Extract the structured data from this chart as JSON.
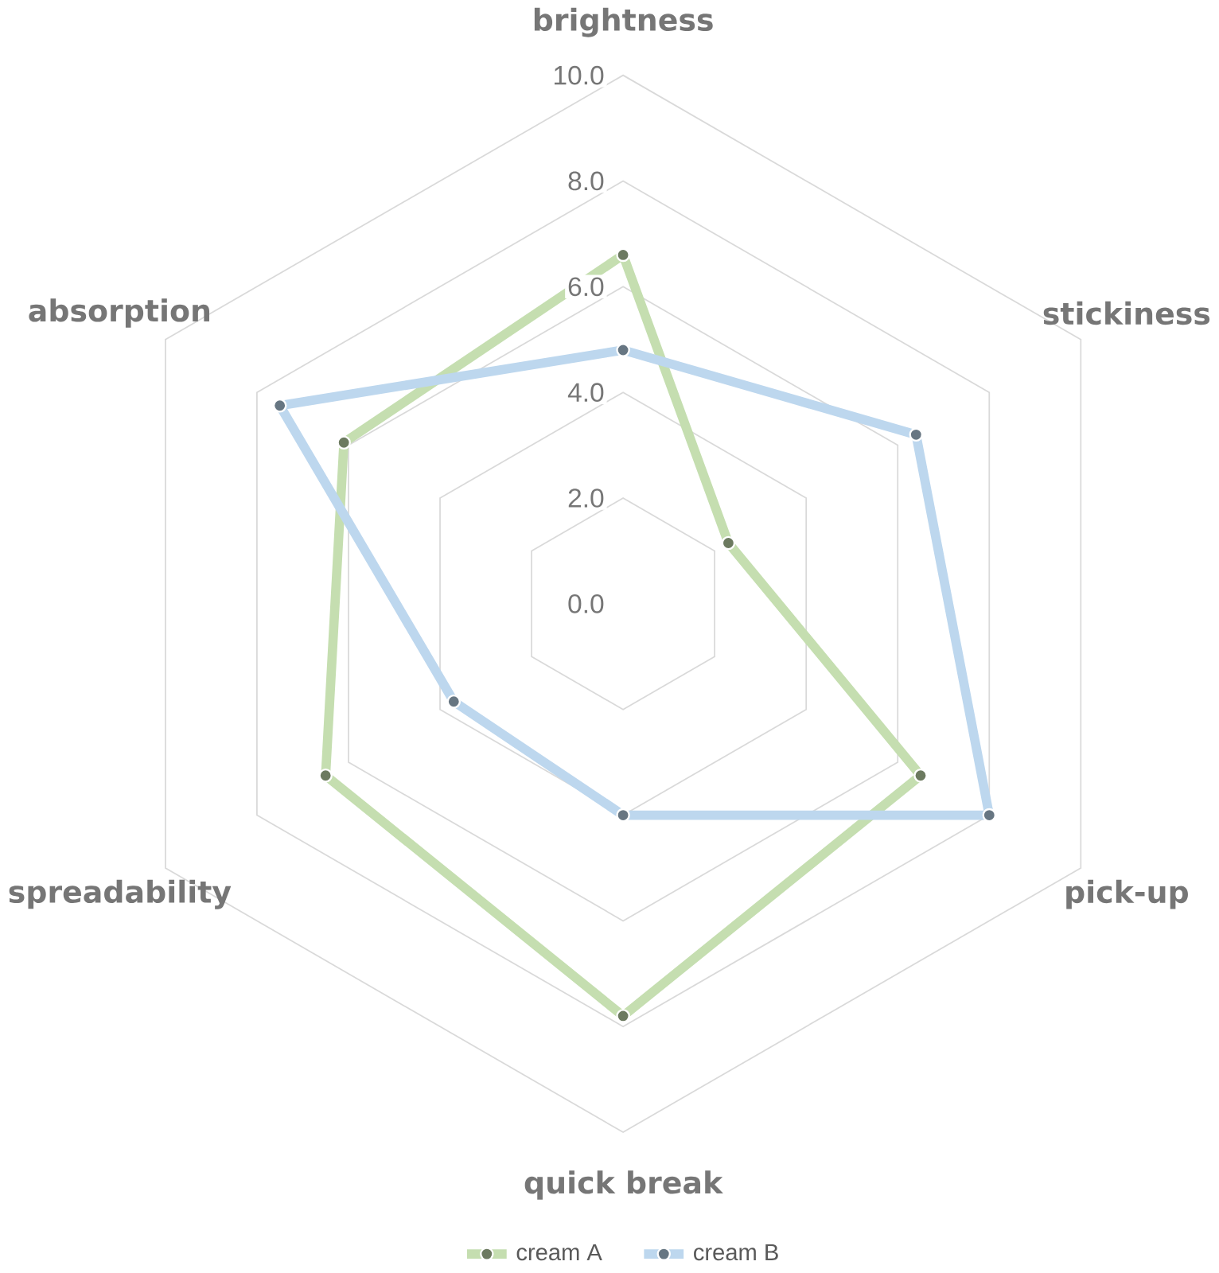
{
  "chart_data": {
    "type": "radar",
    "categories": [
      "brightness",
      "stickiness",
      "pick-up",
      "quick break",
      "spreadability",
      "absorption"
    ],
    "series": [
      {
        "name": "cream A",
        "color": "#c5deb0",
        "values": [
          6.6,
          2.3,
          6.5,
          7.8,
          6.5,
          6.1
        ]
      },
      {
        "name": "cream B",
        "color": "#bdd7ee",
        "values": [
          4.8,
          6.4,
          8.0,
          4.0,
          3.7,
          7.5
        ]
      }
    ],
    "ylim": [
      0,
      10
    ],
    "yticks": [
      {
        "value": 0,
        "label": "0.0"
      },
      {
        "value": 2,
        "label": "2.0"
      },
      {
        "value": 4,
        "label": "4.0"
      },
      {
        "value": 6,
        "label": "6.0"
      },
      {
        "value": 8,
        "label": "8.0"
      },
      {
        "value": 10,
        "label": "10.0"
      }
    ],
    "grid": true,
    "legend": "bottom",
    "marker": "circle"
  }
}
